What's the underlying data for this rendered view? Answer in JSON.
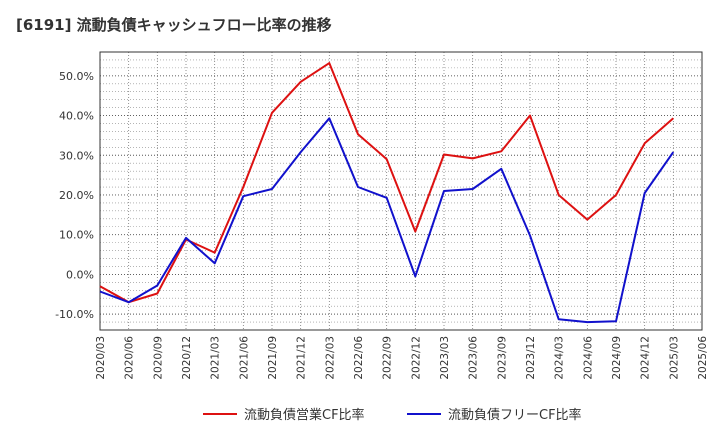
{
  "chart_data": {
    "type": "line",
    "title": "[6191]  流動負債キャッシュフロー比率の推移",
    "categories": [
      "2020/03",
      "2020/06",
      "2020/09",
      "2020/12",
      "2021/03",
      "2021/06",
      "2021/09",
      "2021/12",
      "2022/03",
      "2022/06",
      "2022/09",
      "2022/12",
      "2023/03",
      "2023/06",
      "2023/09",
      "2023/12",
      "2024/03",
      "2024/06",
      "2024/09",
      "2024/12",
      "2025/03",
      "2025/06"
    ],
    "ylim": [
      -14,
      56
    ],
    "yticks": [
      -10,
      0,
      10,
      20,
      30,
      40,
      50
    ],
    "ytick_labels": [
      "-10.0%",
      "0.0%",
      "10.0%",
      "20.0%",
      "30.0%",
      "40.0%",
      "50.0%"
    ],
    "grid": true,
    "legend_position": "bottom",
    "series": [
      {
        "name": "流動負債営業CF比率",
        "color": "#dd1111",
        "values": [
          -3.0,
          -7.0,
          -4.8,
          8.8,
          5.5,
          22.0,
          40.7,
          48.5,
          53.2,
          35.3,
          29.0,
          10.8,
          30.2,
          29.2,
          31.0,
          40.0,
          20.0,
          13.8,
          20.0,
          33.0,
          39.3,
          null
        ]
      },
      {
        "name": "流動負債フリーCF比率",
        "color": "#1111cc",
        "values": [
          -4.3,
          -7.0,
          -2.8,
          9.2,
          2.8,
          19.7,
          21.5,
          30.8,
          39.3,
          22.0,
          19.3,
          -0.5,
          21.0,
          21.5,
          26.6,
          9.8,
          -11.3,
          -12.0,
          -11.8,
          20.5,
          30.8,
          null
        ]
      }
    ]
  }
}
